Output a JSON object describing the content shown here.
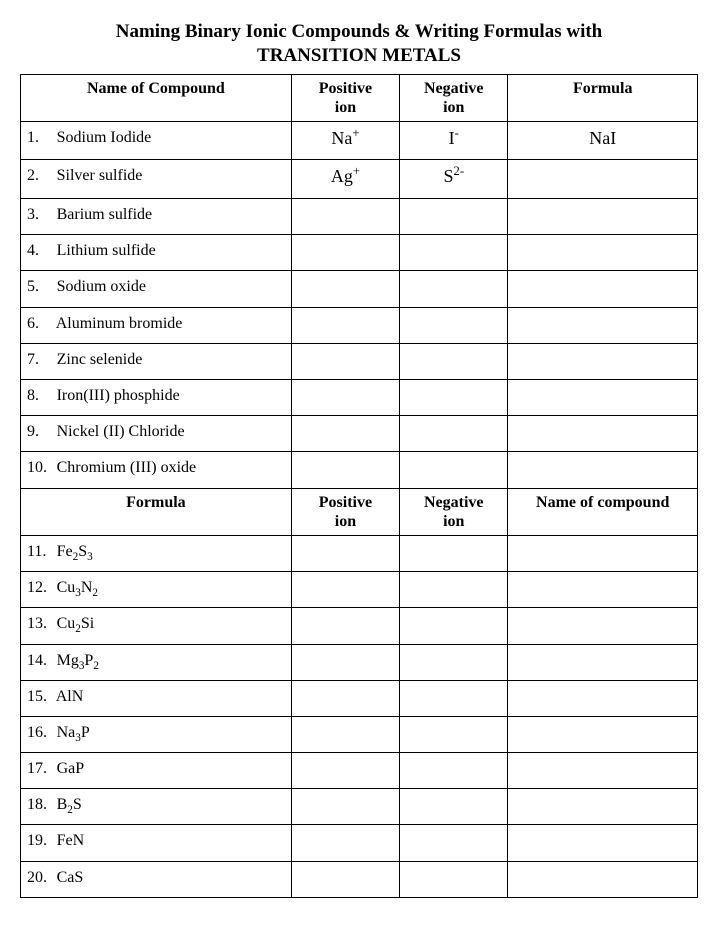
{
  "title_line1": "Naming Binary Ionic Compounds & Writing Formulas with",
  "title_line2": "TRANSITION METALS",
  "headers1": {
    "name": "Name of Compound",
    "pos": "Positive ion",
    "neg": "Negative ion",
    "formula": "Formula"
  },
  "headers2": {
    "formula": "Formula",
    "pos": "Positive ion",
    "neg": "Negative ion",
    "name": "Name of compound"
  },
  "rows1": [
    {
      "n": "1.",
      "name": "Sodium Iodide",
      "pos_base": "Na",
      "pos_sup": "+",
      "neg_base": "I",
      "neg_sup": "-",
      "formula": "NaI"
    },
    {
      "n": "2.",
      "name": "Silver sulfide",
      "pos_base": "Ag",
      "pos_sup": "+",
      "neg_base": "S",
      "neg_sup": "2-",
      "formula": ""
    },
    {
      "n": "3.",
      "name": "Barium sulfide",
      "pos_base": "",
      "pos_sup": "",
      "neg_base": "",
      "neg_sup": "",
      "formula": ""
    },
    {
      "n": "4.",
      "name": "Lithium sulfide",
      "pos_base": "",
      "pos_sup": "",
      "neg_base": "",
      "neg_sup": "",
      "formula": ""
    },
    {
      "n": "5.",
      "name": "Sodium oxide",
      "pos_base": "",
      "pos_sup": "",
      "neg_base": "",
      "neg_sup": "",
      "formula": ""
    },
    {
      "n": "6.",
      "name": "Aluminum bromide",
      "pos_base": "",
      "pos_sup": "",
      "neg_base": "",
      "neg_sup": "",
      "formula": ""
    },
    {
      "n": "7.",
      "name": "Zinc selenide",
      "pos_base": "",
      "pos_sup": "",
      "neg_base": "",
      "neg_sup": "",
      "formula": ""
    },
    {
      "n": "8.",
      "name": "Iron(III) phosphide",
      "pos_base": "",
      "pos_sup": "",
      "neg_base": "",
      "neg_sup": "",
      "formula": ""
    },
    {
      "n": "9.",
      "name": "Nickel (II) Chloride",
      "pos_base": "",
      "pos_sup": "",
      "neg_base": "",
      "neg_sup": "",
      "formula": ""
    },
    {
      "n": "10.",
      "name": "Chromium (III) oxide",
      "pos_base": "",
      "pos_sup": "",
      "neg_base": "",
      "neg_sup": "",
      "formula": ""
    }
  ],
  "rows2": [
    {
      "n": "11.",
      "parts": [
        {
          "t": "Fe"
        },
        {
          "sub": "2"
        },
        {
          "t": "S"
        },
        {
          "sub": "3"
        }
      ]
    },
    {
      "n": "12.",
      "parts": [
        {
          "t": "Cu"
        },
        {
          "sub": "3"
        },
        {
          "t": "N"
        },
        {
          "sub": "2"
        }
      ]
    },
    {
      "n": "13.",
      "parts": [
        {
          "t": "Cu"
        },
        {
          "sub": "2"
        },
        {
          "t": "Si"
        }
      ]
    },
    {
      "n": "14.",
      "parts": [
        {
          "t": "Mg"
        },
        {
          "sub": "3"
        },
        {
          "t": "P"
        },
        {
          "sub": "2"
        }
      ]
    },
    {
      "n": "15.",
      "parts": [
        {
          "t": "AlN"
        }
      ]
    },
    {
      "n": "16.",
      "parts": [
        {
          "t": "Na"
        },
        {
          "sub": "3"
        },
        {
          "t": "P"
        }
      ]
    },
    {
      "n": "17.",
      "parts": [
        {
          "t": "GaP"
        }
      ]
    },
    {
      "n": "18.",
      "parts": [
        {
          "t": "B"
        },
        {
          "sub": "2"
        },
        {
          "t": "S"
        }
      ]
    },
    {
      "n": "19.",
      "parts": [
        {
          "t": "FeN"
        }
      ]
    },
    {
      "n": "20.",
      "parts": [
        {
          "t": "CaS"
        }
      ]
    }
  ],
  "style": {
    "background_color": "#ffffff",
    "text_color": "#000000",
    "border_color": "#000000",
    "font_family": "Times New Roman",
    "title_fontsize_pt": 14,
    "body_fontsize_pt": 12,
    "column_widths_pct": [
      40,
      16,
      16,
      28
    ]
  }
}
